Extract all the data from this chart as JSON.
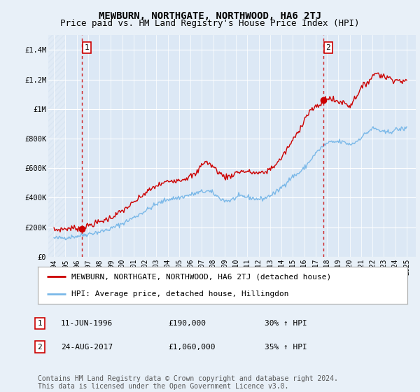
{
  "title": "MEWBURN, NORTHGATE, NORTHWOOD, HA6 2TJ",
  "subtitle": "Price paid vs. HM Land Registry's House Price Index (HPI)",
  "background_color": "#e8f0f8",
  "plot_bg_color": "#dce8f5",
  "line1_color": "#cc0000",
  "line2_color": "#7ab8e8",
  "ylim": [
    0,
    1500000
  ],
  "yticks": [
    0,
    200000,
    400000,
    600000,
    800000,
    1000000,
    1200000,
    1400000
  ],
  "ytick_labels": [
    "£0",
    "£200K",
    "£400K",
    "£600K",
    "£800K",
    "£1M",
    "£1.2M",
    "£1.4M"
  ],
  "sale1_year": 1996.44,
  "sale1_price": 190000,
  "sale2_year": 2017.65,
  "sale2_price": 1060000,
  "legend_label1": "MEWBURN, NORTHGATE, NORTHWOOD, HA6 2TJ (detached house)",
  "legend_label2": "HPI: Average price, detached house, Hillingdon",
  "ann1_label": "1",
  "ann1_date": "11-JUN-1996",
  "ann1_price": "£190,000",
  "ann1_hpi": "30% ↑ HPI",
  "ann2_label": "2",
  "ann2_date": "24-AUG-2017",
  "ann2_price": "£1,060,000",
  "ann2_hpi": "35% ↑ HPI",
  "footer": "Contains HM Land Registry data © Crown copyright and database right 2024.\nThis data is licensed under the Open Government Licence v3.0.",
  "xmin": 1993.5,
  "xmax": 2025.8,
  "hatch_end": 1995.0,
  "xtick_years": [
    1994,
    1995,
    1996,
    1997,
    1998,
    1999,
    2000,
    2001,
    2002,
    2003,
    2004,
    2005,
    2006,
    2007,
    2008,
    2009,
    2010,
    2011,
    2012,
    2013,
    2014,
    2015,
    2016,
    2017,
    2018,
    2019,
    2020,
    2021,
    2022,
    2023,
    2024,
    2025
  ],
  "title_fontsize": 10,
  "subtitle_fontsize": 9,
  "tick_fontsize": 7.5,
  "legend_fontsize": 8,
  "ann_fontsize": 8,
  "footer_fontsize": 7
}
